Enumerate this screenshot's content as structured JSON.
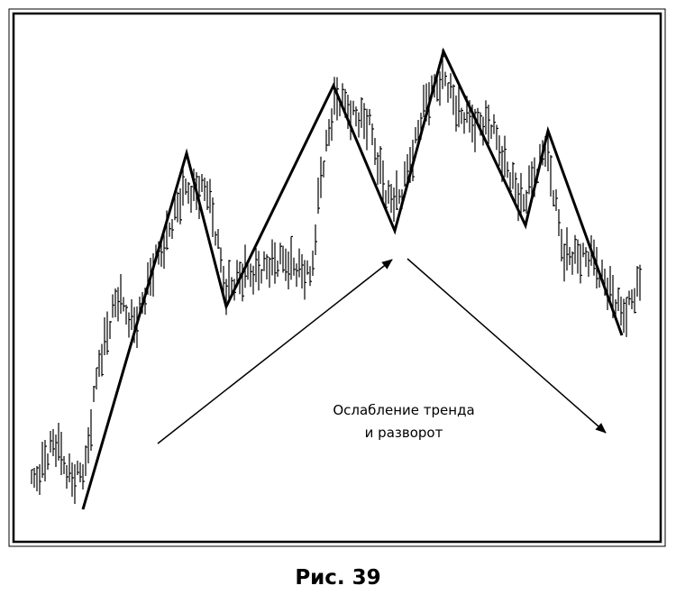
{
  "annotation": {
    "lines": [
      "Ослабление тренда",
      "и разворот"
    ]
  },
  "caption": "Рис. 39"
}
